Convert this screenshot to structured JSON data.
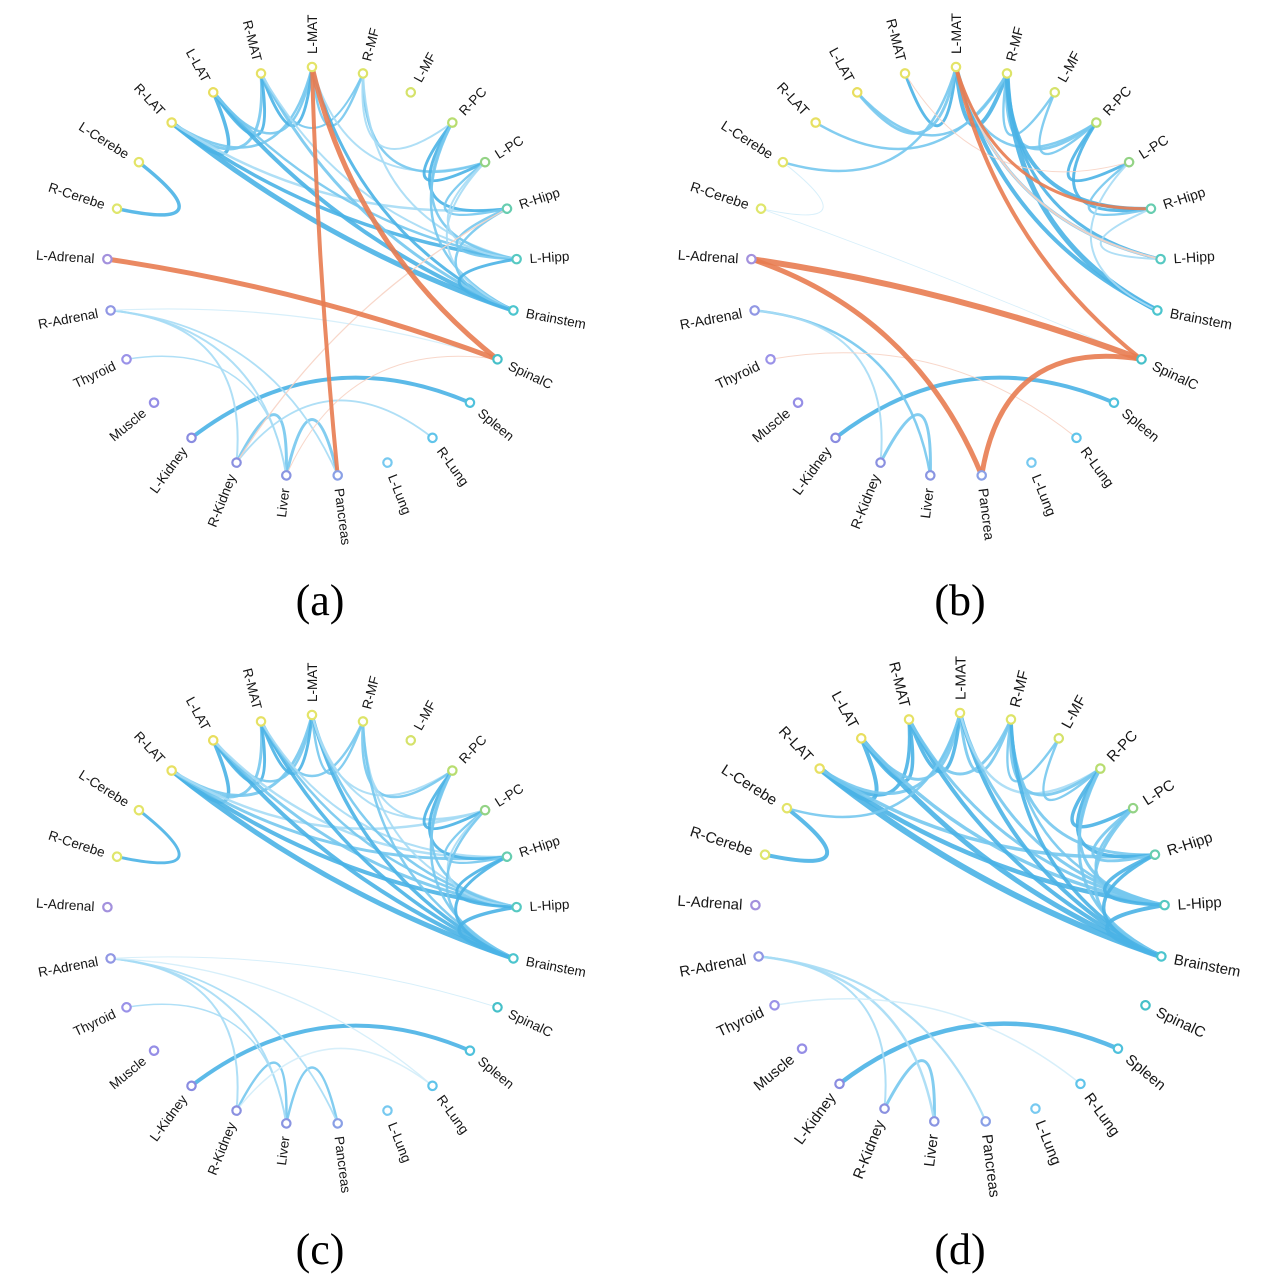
{
  "colors": {
    "b1": "#4ab2e6",
    "b2": "#76c8ee",
    "b3": "#a6dcf5",
    "b4": "#d3edfa",
    "o1": "#e87c51",
    "o2": "#f7d3c4",
    "node_fill": "#ffffff",
    "label_color": "#161616",
    "background": "#ffffff"
  },
  "nodes": [
    {
      "label": "L-MAT",
      "ring": "#e4e468"
    },
    {
      "label": "R-MF",
      "ring": "#dde468"
    },
    {
      "label": "L-MF",
      "ring": "#d5e26a"
    },
    {
      "label": "R-PC",
      "ring": "#b8dd70"
    },
    {
      "label": "L-PC",
      "ring": "#93d385"
    },
    {
      "label": "R-Hipp",
      "ring": "#67cdb0"
    },
    {
      "label": "L-Hipp",
      "ring": "#57c9c2"
    },
    {
      "label": "Brainstem",
      "ring": "#4cc5ce"
    },
    {
      "label": "SpinalC",
      "ring": "#46c0c9"
    },
    {
      "label": "Spleen",
      "ring": "#4fc1dc"
    },
    {
      "label": "R-Lung",
      "ring": "#60c4ea"
    },
    {
      "label": "L-Lung",
      "ring": "#77c9f0"
    },
    {
      "label": "Pancreas",
      "ring": "#8aa0e6"
    },
    {
      "label": "Liver",
      "ring": "#8a95e2"
    },
    {
      "label": "R-Kidney",
      "ring": "#8a90e0"
    },
    {
      "label": "L-Kidney",
      "ring": "#8a8ce0"
    },
    {
      "label": "Muscle",
      "ring": "#958ee6"
    },
    {
      "label": "Thyroid",
      "ring": "#9a92e8"
    },
    {
      "label": "R-Adrenal",
      "ring": "#9197e4"
    },
    {
      "label": "L-Adrenal",
      "ring": "#a391dd"
    },
    {
      "label": "R-Cerebe",
      "ring": "#dfe66c"
    },
    {
      "label": "L-Cerebe",
      "ring": "#e3e468"
    },
    {
      "label": "R-LAT",
      "ring": "#e7e062"
    },
    {
      "label": "L-LAT",
      "ring": "#e8de5e"
    },
    {
      "label": "R-MAT",
      "ring": "#e6e164"
    }
  ],
  "chart_data": [
    {
      "type": "chord",
      "id": "a",
      "caption": "(a)",
      "categories": [
        "L-MAT",
        "R-MF",
        "L-MF",
        "R-PC",
        "L-PC",
        "R-Hipp",
        "L-Hipp",
        "Brainstem",
        "SpinalC",
        "Spleen",
        "R-Lung",
        "L-Lung",
        "Pancreas",
        "Liver",
        "R-Kidney",
        "L-Kidney",
        "Muscle",
        "Thyroid",
        "R-Adrenal",
        "L-Adrenal",
        "R-Cerebe",
        "L-Cerebe",
        "R-LAT",
        "L-LAT",
        "R-MAT"
      ],
      "edges": [
        [
          22,
          23,
          3.5,
          "b1"
        ],
        [
          22,
          24,
          3,
          "b2"
        ],
        [
          22,
          0,
          2.5,
          "b2"
        ],
        [
          22,
          7,
          5,
          "b1"
        ],
        [
          22,
          6,
          3.5,
          "b1"
        ],
        [
          22,
          5,
          2.5,
          "b3"
        ],
        [
          23,
          24,
          3,
          "b1"
        ],
        [
          23,
          0,
          2.5,
          "b2"
        ],
        [
          23,
          7,
          4,
          "b1"
        ],
        [
          23,
          6,
          2.5,
          "b2"
        ],
        [
          24,
          0,
          3,
          "b1"
        ],
        [
          24,
          1,
          2,
          "b2"
        ],
        [
          24,
          7,
          3,
          "b2"
        ],
        [
          24,
          6,
          2,
          "b3"
        ],
        [
          0,
          1,
          2.5,
          "b2"
        ],
        [
          0,
          7,
          3,
          "b1"
        ],
        [
          0,
          4,
          2,
          "b3"
        ],
        [
          1,
          4,
          2.5,
          "b2"
        ],
        [
          1,
          3,
          2,
          "b3"
        ],
        [
          1,
          6,
          2,
          "b3"
        ],
        [
          3,
          4,
          3,
          "b1"
        ],
        [
          3,
          5,
          3,
          "b1"
        ],
        [
          3,
          6,
          2.5,
          "b2"
        ],
        [
          3,
          7,
          2.5,
          "b2"
        ],
        [
          4,
          5,
          2.5,
          "b2"
        ],
        [
          4,
          6,
          2,
          "b3"
        ],
        [
          4,
          7,
          2,
          "b3"
        ],
        [
          5,
          6,
          2.5,
          "b2"
        ],
        [
          5,
          7,
          2.5,
          "b2"
        ],
        [
          6,
          7,
          3,
          "b1"
        ],
        [
          20,
          21,
          3.5,
          "b1"
        ],
        [
          15,
          9,
          4,
          "b1"
        ],
        [
          14,
          13,
          3,
          "b2"
        ],
        [
          13,
          12,
          3,
          "b2"
        ],
        [
          18,
          14,
          2,
          "b3"
        ],
        [
          18,
          13,
          2,
          "b3"
        ],
        [
          18,
          12,
          1.8,
          "b3"
        ],
        [
          17,
          13,
          1.5,
          "b3"
        ],
        [
          14,
          10,
          1.8,
          "b3"
        ],
        [
          18,
          8,
          1.2,
          "b4"
        ],
        [
          5,
          14,
          1.3,
          "o2"
        ],
        [
          8,
          13,
          1,
          "o2"
        ],
        [
          0,
          8,
          5,
          "o1"
        ],
        [
          19,
          8,
          5,
          "o1"
        ],
        [
          0,
          12,
          4,
          "o1"
        ]
      ]
    },
    {
      "type": "chord",
      "id": "b",
      "caption": "(b)",
      "label_overrides": {
        "12": "Pancrea"
      },
      "categories": [
        "L-MAT",
        "R-MF",
        "L-MF",
        "R-PC",
        "L-PC",
        "R-Hipp",
        "L-Hipp",
        "Brainstem",
        "SpinalC",
        "Spleen",
        "R-Lung",
        "L-Lung",
        "Pancrea",
        "Liver",
        "R-Kidney",
        "L-Kidney",
        "Muscle",
        "Thyroid",
        "R-Adrenal",
        "L-Adrenal",
        "R-Cerebe",
        "L-Cerebe",
        "R-LAT",
        "L-LAT",
        "R-MAT"
      ],
      "edges": [
        [
          24,
          0,
          3,
          "b1"
        ],
        [
          0,
          1,
          4,
          "b1"
        ],
        [
          1,
          2,
          2.5,
          "b2"
        ],
        [
          2,
          3,
          2.5,
          "b2"
        ],
        [
          3,
          4,
          3,
          "b1"
        ],
        [
          0,
          3,
          2.5,
          "b2"
        ],
        [
          1,
          3,
          3,
          "b2"
        ],
        [
          23,
          0,
          3,
          "b2"
        ],
        [
          23,
          1,
          2.5,
          "b2"
        ],
        [
          22,
          1,
          2.5,
          "b2"
        ],
        [
          21,
          0,
          2.5,
          "b2"
        ],
        [
          20,
          21,
          1,
          "b4"
        ],
        [
          20,
          8,
          0.8,
          "b4"
        ],
        [
          1,
          5,
          4,
          "b1"
        ],
        [
          1,
          6,
          3,
          "b1"
        ],
        [
          1,
          7,
          5,
          "b1"
        ],
        [
          0,
          6,
          3,
          "b2"
        ],
        [
          0,
          7,
          4,
          "b1"
        ],
        [
          3,
          5,
          3,
          "b1"
        ],
        [
          4,
          5,
          2.5,
          "b2"
        ],
        [
          4,
          7,
          2,
          "b3"
        ],
        [
          5,
          6,
          2,
          "b3"
        ],
        [
          15,
          9,
          4,
          "b1"
        ],
        [
          14,
          13,
          3,
          "b2"
        ],
        [
          18,
          13,
          2.5,
          "b2"
        ],
        [
          18,
          14,
          2,
          "b3"
        ],
        [
          24,
          4,
          1,
          "o2"
        ],
        [
          17,
          10,
          1,
          "o2"
        ],
        [
          0,
          6,
          2,
          "o2"
        ],
        [
          19,
          8,
          6,
          "o1"
        ],
        [
          19,
          12,
          5,
          "o1"
        ],
        [
          8,
          12,
          5,
          "o1"
        ],
        [
          0,
          8,
          4,
          "o1"
        ],
        [
          0,
          5,
          3,
          "o1"
        ]
      ]
    },
    {
      "type": "chord",
      "id": "c",
      "caption": "(c)",
      "categories": [
        "L-MAT",
        "R-MF",
        "L-MF",
        "R-PC",
        "L-PC",
        "R-Hipp",
        "L-Hipp",
        "Brainstem",
        "SpinalC",
        "Spleen",
        "R-Lung",
        "L-Lung",
        "Pancreas",
        "Liver",
        "R-Kidney",
        "L-Kidney",
        "Muscle",
        "Thyroid",
        "R-Adrenal",
        "L-Adrenal",
        "R-Cerebe",
        "L-Cerebe",
        "R-LAT",
        "L-LAT",
        "R-MAT"
      ],
      "edges": [
        [
          22,
          23,
          3.5,
          "b1"
        ],
        [
          22,
          24,
          3,
          "b2"
        ],
        [
          22,
          0,
          3,
          "b2"
        ],
        [
          22,
          7,
          5,
          "b1"
        ],
        [
          22,
          6,
          4,
          "b1"
        ],
        [
          22,
          5,
          3,
          "b2"
        ],
        [
          22,
          4,
          2.5,
          "b3"
        ],
        [
          23,
          24,
          3,
          "b1"
        ],
        [
          23,
          0,
          2.5,
          "b2"
        ],
        [
          23,
          7,
          4,
          "b1"
        ],
        [
          23,
          6,
          3,
          "b2"
        ],
        [
          23,
          5,
          2.5,
          "b3"
        ],
        [
          24,
          0,
          3,
          "b1"
        ],
        [
          24,
          1,
          2.5,
          "b2"
        ],
        [
          24,
          7,
          3.5,
          "b1"
        ],
        [
          24,
          6,
          2.5,
          "b2"
        ],
        [
          24,
          5,
          2,
          "b3"
        ],
        [
          0,
          1,
          2.5,
          "b2"
        ],
        [
          0,
          7,
          3.5,
          "b1"
        ],
        [
          0,
          6,
          2.5,
          "b2"
        ],
        [
          0,
          4,
          2,
          "b3"
        ],
        [
          0,
          3,
          2,
          "b3"
        ],
        [
          1,
          3,
          2.5,
          "b2"
        ],
        [
          1,
          4,
          2,
          "b3"
        ],
        [
          1,
          6,
          2,
          "b3"
        ],
        [
          1,
          7,
          2.5,
          "b2"
        ],
        [
          3,
          4,
          3,
          "b1"
        ],
        [
          3,
          5,
          3,
          "b1"
        ],
        [
          3,
          6,
          2.5,
          "b2"
        ],
        [
          3,
          7,
          2.5,
          "b2"
        ],
        [
          4,
          5,
          2.5,
          "b2"
        ],
        [
          4,
          6,
          2,
          "b3"
        ],
        [
          4,
          7,
          2.5,
          "b2"
        ],
        [
          5,
          6,
          3,
          "b1"
        ],
        [
          5,
          7,
          3,
          "b1"
        ],
        [
          6,
          7,
          3.5,
          "b1"
        ],
        [
          20,
          21,
          3,
          "b1"
        ],
        [
          15,
          9,
          4,
          "b1"
        ],
        [
          14,
          13,
          2.5,
          "b2"
        ],
        [
          13,
          12,
          2.5,
          "b2"
        ],
        [
          18,
          14,
          2,
          "b3"
        ],
        [
          18,
          13,
          2,
          "b3"
        ],
        [
          18,
          12,
          1.8,
          "b3"
        ],
        [
          17,
          13,
          1.5,
          "b3"
        ],
        [
          14,
          10,
          1.5,
          "b4"
        ],
        [
          18,
          10,
          1.3,
          "b4"
        ],
        [
          18,
          8,
          1,
          "b4"
        ]
      ]
    },
    {
      "type": "chord",
      "id": "d",
      "caption": "(d)",
      "categories": [
        "L-MAT",
        "R-MF",
        "L-MF",
        "R-PC",
        "L-PC",
        "R-Hipp",
        "L-Hipp",
        "Brainstem",
        "SpinalC",
        "Spleen",
        "R-Lung",
        "L-Lung",
        "Pancreas",
        "Liver",
        "R-Kidney",
        "L-Kidney",
        "Muscle",
        "Thyroid",
        "R-Adrenal",
        "L-Adrenal",
        "R-Cerebe",
        "L-Cerebe",
        "R-LAT",
        "L-LAT",
        "R-MAT"
      ],
      "edges": [
        [
          22,
          23,
          4,
          "b1"
        ],
        [
          22,
          24,
          3.5,
          "b1"
        ],
        [
          22,
          0,
          3,
          "b2"
        ],
        [
          22,
          7,
          6,
          "b1"
        ],
        [
          22,
          6,
          4.5,
          "b1"
        ],
        [
          22,
          5,
          3.5,
          "b2"
        ],
        [
          23,
          24,
          3.5,
          "b1"
        ],
        [
          23,
          0,
          3,
          "b2"
        ],
        [
          23,
          7,
          5,
          "b1"
        ],
        [
          23,
          6,
          3.5,
          "b2"
        ],
        [
          24,
          0,
          3.5,
          "b1"
        ],
        [
          24,
          1,
          3,
          "b2"
        ],
        [
          24,
          7,
          4,
          "b1"
        ],
        [
          24,
          6,
          3,
          "b2"
        ],
        [
          0,
          1,
          3,
          "b2"
        ],
        [
          0,
          7,
          4,
          "b1"
        ],
        [
          0,
          6,
          3,
          "b2"
        ],
        [
          0,
          3,
          2.5,
          "b3"
        ],
        [
          1,
          2,
          2.5,
          "b2"
        ],
        [
          2,
          3,
          2.5,
          "b2"
        ],
        [
          1,
          3,
          3,
          "b2"
        ],
        [
          1,
          5,
          3,
          "b2"
        ],
        [
          1,
          6,
          2.5,
          "b2"
        ],
        [
          1,
          7,
          3.5,
          "b1"
        ],
        [
          3,
          4,
          3.5,
          "b1"
        ],
        [
          3,
          5,
          3.5,
          "b1"
        ],
        [
          3,
          6,
          3,
          "b2"
        ],
        [
          3,
          7,
          3,
          "b2"
        ],
        [
          4,
          5,
          3,
          "b2"
        ],
        [
          4,
          6,
          2.5,
          "b2"
        ],
        [
          4,
          7,
          3,
          "b2"
        ],
        [
          5,
          6,
          3.5,
          "b1"
        ],
        [
          5,
          7,
          3.5,
          "b1"
        ],
        [
          6,
          7,
          4,
          "b1"
        ],
        [
          20,
          21,
          4,
          "b1"
        ],
        [
          21,
          0,
          2.5,
          "b2"
        ],
        [
          15,
          9,
          4.5,
          "b1"
        ],
        [
          14,
          13,
          3,
          "b2"
        ],
        [
          18,
          13,
          2.5,
          "b3"
        ],
        [
          18,
          12,
          2.2,
          "b3"
        ],
        [
          18,
          14,
          2,
          "b3"
        ],
        [
          17,
          10,
          1.5,
          "b4"
        ]
      ]
    }
  ]
}
